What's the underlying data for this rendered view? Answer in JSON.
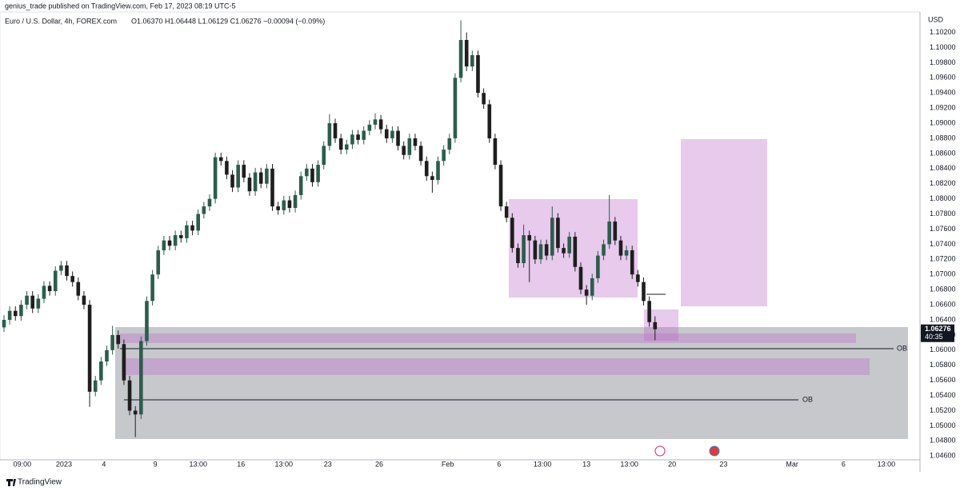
{
  "header": {
    "published": "genius_trade published on TradingView.com, Feb 17, 2023 08:19 UTC-5",
    "footer": "TradingView"
  },
  "chart_data": {
    "type": "candlestick",
    "title": "Euro / U.S. Dollar, 4h, FOREX.com",
    "subtitle": "O1.06370  H1.06448  L1.06129  C1.06276  −0.00094 (−0.09%)",
    "currency": "USD",
    "countdown": "40:35",
    "annotations": [
      "OB",
      "OB"
    ],
    "up_color": "#2b5d4c",
    "down_color": "#1e1e1e",
    "grid": false,
    "open": [
      1.063,
      1.064,
      1.0652,
      1.0645,
      1.066,
      1.0672,
      1.0655,
      1.0668,
      1.0685,
      1.0678,
      1.0705,
      1.0712,
      1.0698,
      1.069,
      1.0672,
      1.066,
      1.0545,
      1.056,
      1.0585,
      1.06,
      1.062,
      1.0608,
      1.056,
      1.052,
      1.0515,
      1.0612,
      1.0665,
      1.07,
      1.0732,
      1.0745,
      1.0738,
      1.0752,
      1.0748,
      1.0765,
      1.0758,
      1.078,
      1.079,
      1.08,
      1.0855,
      1.085,
      1.0832,
      1.0815,
      1.0845,
      1.0828,
      1.081,
      1.0835,
      1.082,
      1.084,
      1.079,
      1.0785,
      1.0798,
      1.0788,
      1.0805,
      1.083,
      1.084,
      1.0822,
      1.0845,
      1.087,
      1.09,
      1.088,
      1.0865,
      1.0872,
      1.0885,
      1.0878,
      1.089,
      1.0898,
      1.0905,
      1.0892,
      1.088,
      1.089,
      1.087,
      1.0858,
      1.088,
      1.087,
      1.085,
      1.083,
      1.0825,
      1.085,
      1.0865,
      1.088,
      1.096,
      1.101,
      1.0975,
      1.099,
      1.094,
      1.0925,
      1.088,
      1.0845,
      1.079,
      1.0775,
      1.0735,
      1.0715,
      1.0752,
      1.0745,
      1.072,
      1.074,
      1.0725,
      1.0775,
      1.0735,
      1.0728,
      1.075,
      1.071,
      1.068,
      1.0672,
      1.0695,
      1.0725,
      1.074,
      1.077,
      1.0745,
      1.0725,
      1.0732,
      1.07,
      1.069,
      1.0665,
      1.0637
    ],
    "high": [
      1.0646,
      1.0658,
      1.0658,
      1.0666,
      1.0678,
      1.0678,
      1.0674,
      1.0691,
      1.0691,
      1.0711,
      1.0718,
      1.0718,
      1.0704,
      1.0696,
      1.0678,
      1.0666,
      1.0566,
      1.0591,
      1.0606,
      1.0632,
      1.0626,
      1.0614,
      1.0566,
      1.0526,
      1.0618,
      1.0671,
      1.0706,
      1.0738,
      1.0751,
      1.0751,
      1.0758,
      1.0758,
      1.0771,
      1.0771,
      1.0786,
      1.0796,
      1.0806,
      1.0861,
      1.0861,
      1.0856,
      1.0838,
      1.0851,
      1.0851,
      1.0834,
      1.0841,
      1.0841,
      1.0846,
      1.0846,
      1.0796,
      1.0804,
      1.0804,
      1.0811,
      1.0836,
      1.0846,
      1.0846,
      1.0851,
      1.0876,
      1.0912,
      1.0906,
      1.0886,
      1.0878,
      1.0891,
      1.0891,
      1.0896,
      1.0904,
      1.0913,
      1.0911,
      1.0898,
      1.0896,
      1.0896,
      1.0876,
      1.0886,
      1.0886,
      1.0876,
      1.0856,
      1.0836,
      1.0856,
      1.0871,
      1.0886,
      1.0966,
      1.1036,
      1.102,
      1.0996,
      1.0996,
      1.0946,
      1.0931,
      1.0886,
      1.0851,
      1.0796,
      1.0781,
      1.0741,
      1.0766,
      1.0758,
      1.0751,
      1.0746,
      1.0746,
      1.079,
      1.0781,
      1.0741,
      1.0756,
      1.0756,
      1.0716,
      1.0686,
      1.0701,
      1.0731,
      1.0746,
      1.0805,
      1.0776,
      1.0751,
      1.0738,
      1.0738,
      1.0706,
      1.0696,
      1.0671,
      1.06448
    ],
    "low": [
      1.0624,
      1.0634,
      1.0639,
      1.0639,
      1.0654,
      1.0649,
      1.0649,
      1.0662,
      1.0672,
      1.0672,
      1.0699,
      1.0692,
      1.0684,
      1.0666,
      1.0654,
      1.0525,
      1.0539,
      1.0554,
      1.0579,
      1.0594,
      1.0602,
      1.0554,
      1.0514,
      1.0485,
      1.0509,
      1.0606,
      1.0659,
      1.0694,
      1.0726,
      1.0732,
      1.0732,
      1.0742,
      1.0742,
      1.0752,
      1.0752,
      1.0774,
      1.0784,
      1.0794,
      1.0844,
      1.0826,
      1.0809,
      1.0809,
      1.0822,
      1.0804,
      1.0804,
      1.0814,
      1.0814,
      1.0784,
      1.0779,
      1.0779,
      1.0782,
      1.0782,
      1.0799,
      1.0824,
      1.0816,
      1.0816,
      1.0839,
      1.0864,
      1.0874,
      1.0859,
      1.0859,
      1.0866,
      1.0872,
      1.0872,
      1.0884,
      1.0892,
      1.0886,
      1.0874,
      1.0874,
      1.0864,
      1.0852,
      1.0852,
      1.0864,
      1.0844,
      1.0824,
      1.0808,
      1.0819,
      1.0844,
      1.0859,
      1.0874,
      1.0954,
      1.0969,
      1.0969,
      1.0934,
      1.0919,
      1.0874,
      1.0839,
      1.0784,
      1.0769,
      1.0729,
      1.0709,
      1.0709,
      1.069,
      1.0714,
      1.0714,
      1.0719,
      1.0719,
      1.0729,
      1.0722,
      1.0722,
      1.0704,
      1.0674,
      1.066,
      1.0666,
      1.0689,
      1.0719,
      1.0734,
      1.0739,
      1.0719,
      1.0719,
      1.0694,
      1.0684,
      1.0659,
      1.0631,
      1.06129
    ],
    "close": [
      1.064,
      1.0652,
      1.0645,
      1.066,
      1.0672,
      1.0655,
      1.0668,
      1.0685,
      1.0678,
      1.0705,
      1.0712,
      1.0698,
      1.069,
      1.0672,
      1.066,
      1.0545,
      1.056,
      1.0585,
      1.06,
      1.062,
      1.0608,
      1.056,
      1.052,
      1.0515,
      1.0612,
      1.0665,
      1.07,
      1.0732,
      1.0745,
      1.0738,
      1.0752,
      1.0748,
      1.0765,
      1.0758,
      1.078,
      1.079,
      1.08,
      1.0855,
      1.085,
      1.0832,
      1.0815,
      1.0845,
      1.0828,
      1.081,
      1.0835,
      1.082,
      1.084,
      1.079,
      1.0785,
      1.0798,
      1.0788,
      1.0805,
      1.083,
      1.084,
      1.0822,
      1.0845,
      1.087,
      1.09,
      1.088,
      1.0865,
      1.0872,
      1.0885,
      1.0878,
      1.089,
      1.0898,
      1.0905,
      1.0892,
      1.088,
      1.089,
      1.087,
      1.0858,
      1.088,
      1.087,
      1.085,
      1.083,
      1.0825,
      1.085,
      1.0865,
      1.088,
      1.096,
      1.101,
      1.0975,
      1.099,
      1.094,
      1.0925,
      1.088,
      1.0845,
      1.079,
      1.0775,
      1.0735,
      1.0715,
      1.0752,
      1.0745,
      1.072,
      1.074,
      1.0725,
      1.0775,
      1.0735,
      1.0728,
      1.075,
      1.071,
      1.068,
      1.0672,
      1.0695,
      1.0725,
      1.074,
      1.077,
      1.0745,
      1.0725,
      1.0732,
      1.07,
      1.069,
      1.0665,
      1.0637,
      1.06276
    ],
    "xlim": [
      -0.7,
      160.4
    ],
    "xticks": [
      {
        "value": 3.2,
        "label": "09:00"
      },
      {
        "value": 10.5,
        "label": "2023"
      },
      {
        "value": 17.5,
        "label": "4"
      },
      {
        "value": 26.5,
        "label": "9"
      },
      {
        "value": 34,
        "label": "13:00"
      },
      {
        "value": 41.5,
        "label": "16"
      },
      {
        "value": 49,
        "label": "13:00"
      },
      {
        "value": 56.7,
        "label": "23"
      },
      {
        "value": 65.7,
        "label": "26"
      },
      {
        "value": 77.7,
        "label": "Feb"
      },
      {
        "value": 86.7,
        "label": "6"
      },
      {
        "value": 94.3,
        "label": "13:00"
      },
      {
        "value": 102,
        "label": "13"
      },
      {
        "value": 109.5,
        "label": "13:00"
      },
      {
        "value": 117,
        "label": "20"
      },
      {
        "value": 126,
        "label": "23"
      },
      {
        "value": 138,
        "label": "Mar"
      },
      {
        "value": 147,
        "label": "6"
      },
      {
        "value": 154.5,
        "label": "13:00"
      }
    ],
    "ylim": [
      1.0455,
      1.1047
    ],
    "yticks": [
      {
        "value": 1.046,
        "label": "1.04600"
      },
      {
        "value": 1.048,
        "label": "1.04800"
      },
      {
        "value": 1.05,
        "label": "1.05000"
      },
      {
        "value": 1.052,
        "label": "1.05200"
      },
      {
        "value": 1.054,
        "label": "1.05400"
      },
      {
        "value": 1.056,
        "label": "1.05600"
      },
      {
        "value": 1.058,
        "label": "1.05800"
      },
      {
        "value": 1.06,
        "label": "1.06000"
      },
      {
        "value": 1.062,
        "label": "1.06200"
      },
      {
        "value": 1.064,
        "label": "1.06400"
      },
      {
        "value": 1.066,
        "label": "1.06600"
      },
      {
        "value": 1.068,
        "label": "1.06800"
      },
      {
        "value": 1.07,
        "label": "1.07000"
      },
      {
        "value": 1.072,
        "label": "1.07200"
      },
      {
        "value": 1.074,
        "label": "1.07400"
      },
      {
        "value": 1.076,
        "label": "1.07600"
      },
      {
        "value": 1.078,
        "label": "1.07800"
      },
      {
        "value": 1.08,
        "label": "1.08000"
      },
      {
        "value": 1.082,
        "label": "1.08200"
      },
      {
        "value": 1.084,
        "label": "1.08400"
      },
      {
        "value": 1.086,
        "label": "1.08600"
      },
      {
        "value": 1.088,
        "label": "1.08800"
      },
      {
        "value": 1.09,
        "label": "1.09000"
      },
      {
        "value": 1.092,
        "label": "1.09200"
      },
      {
        "value": 1.094,
        "label": "1.09400"
      },
      {
        "value": 1.096,
        "label": "1.09600"
      },
      {
        "value": 1.098,
        "label": "1.09800"
      },
      {
        "value": 1.1,
        "label": "1.10000"
      },
      {
        "value": 1.102,
        "label": "1.10200"
      }
    ]
  }
}
